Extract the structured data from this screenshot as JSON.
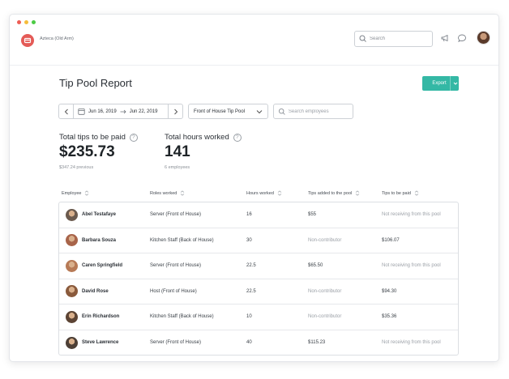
{
  "app": {
    "location_label": "Azteca (Old Arm)",
    "search_placeholder": "Search"
  },
  "page": {
    "title": "Tip Pool Report",
    "export_label": "Export"
  },
  "filters": {
    "start_date": "Jun 16, 2019",
    "end_date": "Jun 22, 2019",
    "pool_select": "Front of House Tip Pool",
    "employee_search_placeholder": "Search employees"
  },
  "stats": {
    "tips": {
      "label": "Total tips to be paid",
      "value": "$235.73",
      "sub": "$347.24 previous"
    },
    "hours": {
      "label": "Total hours worked",
      "value": "141",
      "sub": "6 employees"
    },
    "help_glyph": "?"
  },
  "table": {
    "headers": [
      "Employee",
      "Roles worked",
      "Hours worked",
      "Tips added to the pool",
      "Tips to be paid"
    ],
    "rows": [
      {
        "name": "Abel Testafaye",
        "role": "Server (Front of House)",
        "hours": "16",
        "tips_added": "$55",
        "tips_added_muted": false,
        "tips_paid": "Not receiving from this pool",
        "tips_paid_muted": true,
        "avatar_color": "#6b5a4e"
      },
      {
        "name": "Barbara Souza",
        "role": "Kitchen Staff (Back of House)",
        "hours": "30",
        "tips_added": "Non-contributor",
        "tips_added_muted": true,
        "tips_paid": "$106.07",
        "tips_paid_muted": false,
        "avatar_color": "#a8644a"
      },
      {
        "name": "Caren Springfield",
        "role": "Server (Front of House)",
        "hours": "22.5",
        "tips_added": "$65.50",
        "tips_added_muted": false,
        "tips_paid": "Not receiving from this pool",
        "tips_paid_muted": true,
        "avatar_color": "#b77a56"
      },
      {
        "name": "David Rose",
        "role": "Host (Front of House)",
        "hours": "22.5",
        "tips_added": "Non-contributor",
        "tips_added_muted": true,
        "tips_paid": "$94.30",
        "tips_paid_muted": false,
        "avatar_color": "#8a5a3c"
      },
      {
        "name": "Erin Richardson",
        "role": "Kitchen Staff (Back of House)",
        "hours": "10",
        "tips_added": "Non-contributor",
        "tips_added_muted": true,
        "tips_paid": "$35.36",
        "tips_paid_muted": false,
        "avatar_color": "#5c4434"
      },
      {
        "name": "Steve Lawrence",
        "role": "Server (Front of House)",
        "hours": "40",
        "tips_added": "$115.23",
        "tips_added_muted": false,
        "tips_paid": "Not receiving from this pool",
        "tips_paid_muted": true,
        "avatar_color": "#4d3f36"
      }
    ]
  },
  "colors": {
    "accent": "#34b8a5",
    "logo": "#e45b57",
    "muted_text": "#9ba0a7"
  }
}
